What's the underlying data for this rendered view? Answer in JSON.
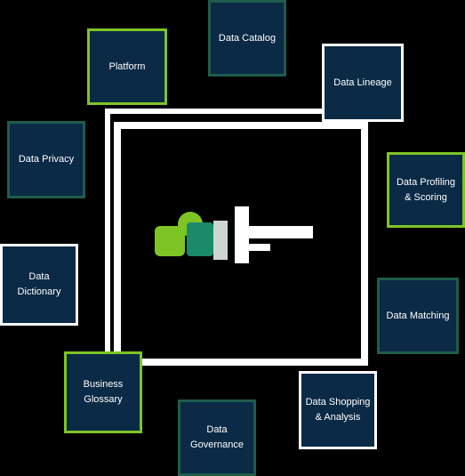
{
  "colors": {
    "background": "#000000",
    "tile_fill": "#0a2a45",
    "border_teal": "#1f5c4c",
    "border_green": "#7ec425",
    "border_white": "#ffffff",
    "logo_green": "#7ec425",
    "logo_teal": "#1a8a6a"
  },
  "tiles": {
    "data_catalog": "Data Catalog",
    "platform": "Platform",
    "data_lineage": "Data Lineage",
    "data_privacy": "Data Privacy",
    "data_profiling": "Data Profiling\n& Scoring",
    "data_dictionary": "Data\nDictionary",
    "data_matching": "Data Matching",
    "business_glossary": "Business\nGlossary",
    "data_shopping": "Data Shopping\n& Analysis",
    "data_governance": "Data\nGovernance"
  },
  "logo": {
    "icon": "cloud-logo-icon"
  }
}
